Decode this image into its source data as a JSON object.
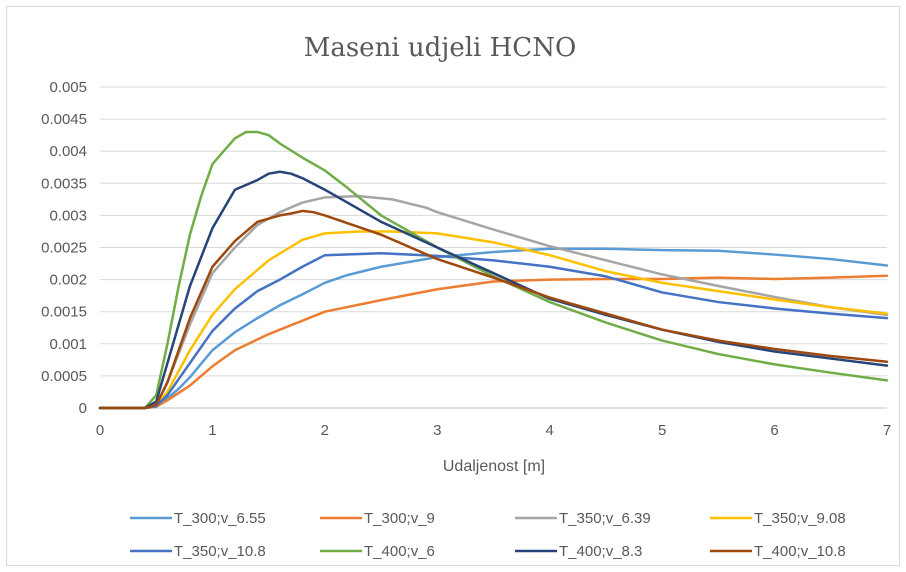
{
  "chart_data": {
    "type": "line",
    "title": "Maseni udjeli HCNO",
    "xlabel": "Udaljenost [m]",
    "ylabel": "",
    "xlim": [
      0,
      7
    ],
    "ylim": [
      0,
      0.005
    ],
    "x_ticks": [
      "0",
      "1",
      "2",
      "3",
      "4",
      "5",
      "6",
      "7"
    ],
    "y_ticks": [
      "0",
      "0.0005",
      "0.001",
      "0.0015",
      "0.002",
      "0.0025",
      "0.003",
      "0.0035",
      "0.004",
      "0.0045",
      "0.005"
    ],
    "grid": "horizontal",
    "legend_position": "bottom",
    "series": [
      {
        "name": "T_300;v_6.55",
        "color": "#5b9bd5",
        "x": [
          0,
          0.4,
          0.5,
          0.6,
          0.7,
          0.8,
          1.0,
          1.2,
          1.4,
          1.6,
          1.8,
          2.0,
          2.2,
          2.5,
          3.0,
          3.5,
          4.0,
          4.5,
          5.0,
          5.5,
          6.0,
          6.5,
          7.0
        ],
        "y": [
          0,
          0,
          2e-05,
          0.00015,
          0.0003,
          0.00048,
          0.0009,
          0.00118,
          0.0014,
          0.0016,
          0.00177,
          0.00195,
          0.00207,
          0.0022,
          0.00235,
          0.00243,
          0.00248,
          0.00248,
          0.00246,
          0.00245,
          0.00239,
          0.00232,
          0.00222
        ]
      },
      {
        "name": "T_300;v_9",
        "color": "#ed7d31",
        "x": [
          0,
          0.4,
          0.5,
          0.6,
          0.8,
          1.0,
          1.2,
          1.5,
          2.0,
          2.5,
          3.0,
          3.5,
          4.0,
          4.5,
          5.0,
          5.5,
          6.0,
          6.5,
          7.0
        ],
        "y": [
          0,
          0,
          2e-05,
          0.00012,
          0.00035,
          0.00065,
          0.0009,
          0.00115,
          0.0015,
          0.00168,
          0.00185,
          0.00197,
          0.002,
          0.00201,
          0.00201,
          0.00203,
          0.00201,
          0.00203,
          0.00206
        ]
      },
      {
        "name": "T_350;v_6.39",
        "color": "#a5a5a5",
        "x": [
          0,
          0.4,
          0.5,
          0.6,
          0.8,
          1.0,
          1.2,
          1.4,
          1.6,
          1.8,
          2.0,
          2.3,
          2.6,
          2.9,
          3.0,
          3.5,
          4.0,
          4.5,
          5.0,
          5.5,
          6.0,
          6.5,
          7.0
        ],
        "y": [
          0,
          0,
          5e-05,
          0.0004,
          0.0013,
          0.0021,
          0.0025,
          0.00285,
          0.00305,
          0.0032,
          0.00328,
          0.0033,
          0.00325,
          0.00312,
          0.00305,
          0.00278,
          0.00252,
          0.0023,
          0.00208,
          0.0019,
          0.00173,
          0.00157,
          0.00145
        ]
      },
      {
        "name": "T_350;v_9.08",
        "color": "#ffc000",
        "x": [
          0,
          0.4,
          0.5,
          0.6,
          0.8,
          1.0,
          1.2,
          1.5,
          1.8,
          2.0,
          2.3,
          2.6,
          3.0,
          3.5,
          4.0,
          4.5,
          5.0,
          5.5,
          6.0,
          6.5,
          7.0
        ],
        "y": [
          0,
          0,
          4e-05,
          0.00025,
          0.0009,
          0.00145,
          0.00185,
          0.0023,
          0.00262,
          0.00272,
          0.00275,
          0.00275,
          0.00272,
          0.00258,
          0.00238,
          0.00213,
          0.00195,
          0.00182,
          0.00169,
          0.00157,
          0.00147
        ]
      },
      {
        "name": "T_350;v_10.8",
        "color": "#4472c4",
        "x": [
          0,
          0.4,
          0.5,
          0.6,
          0.8,
          1.0,
          1.2,
          1.4,
          1.6,
          1.8,
          2.0,
          2.5,
          3.0,
          3.5,
          4.0,
          4.5,
          5.0,
          5.5,
          6.0,
          6.5,
          7.0
        ],
        "y": [
          0,
          0,
          3e-05,
          0.0002,
          0.0007,
          0.0012,
          0.00155,
          0.00182,
          0.002,
          0.0022,
          0.00238,
          0.00241,
          0.00237,
          0.0023,
          0.0022,
          0.00205,
          0.0018,
          0.00165,
          0.00155,
          0.00147,
          0.0014
        ]
      },
      {
        "name": "T_400;v_6",
        "color": "#70ad47",
        "x": [
          0,
          0.4,
          0.5,
          0.6,
          0.7,
          0.8,
          0.9,
          1.0,
          1.1,
          1.2,
          1.3,
          1.4,
          1.5,
          1.6,
          1.8,
          2.0,
          2.2,
          2.5,
          3.0,
          3.5,
          4.0,
          4.5,
          5.0,
          5.5,
          6.0,
          6.5,
          7.0
        ],
        "y": [
          0,
          0,
          0.0002,
          0.001,
          0.0019,
          0.0027,
          0.0033,
          0.0038,
          0.004,
          0.0042,
          0.0043,
          0.0043,
          0.00425,
          0.00412,
          0.0039,
          0.0037,
          0.00343,
          0.003,
          0.0025,
          0.00205,
          0.00165,
          0.00133,
          0.00105,
          0.00084,
          0.00068,
          0.00055,
          0.00043
        ]
      },
      {
        "name": "T_400;v_8.3",
        "color": "#264478",
        "x": [
          0,
          0.4,
          0.5,
          0.6,
          0.8,
          1.0,
          1.2,
          1.4,
          1.5,
          1.6,
          1.7,
          1.8,
          2.0,
          2.5,
          3.0,
          3.5,
          4.0,
          4.5,
          5.0,
          5.5,
          6.0,
          6.5,
          7.0
        ],
        "y": [
          0,
          0,
          0.0001,
          0.0007,
          0.0019,
          0.0028,
          0.0034,
          0.00355,
          0.00365,
          0.00368,
          0.00365,
          0.00358,
          0.0034,
          0.0029,
          0.0025,
          0.0021,
          0.0017,
          0.00145,
          0.00122,
          0.00103,
          0.00088,
          0.00077,
          0.00066
        ]
      },
      {
        "name": "T_400;v_10.8",
        "color": "#9e480e",
        "x": [
          0,
          0.4,
          0.5,
          0.6,
          0.8,
          1.0,
          1.2,
          1.4,
          1.6,
          1.7,
          1.8,
          1.9,
          2.0,
          2.5,
          3.0,
          3.5,
          4.0,
          4.5,
          5.0,
          5.5,
          6.0,
          6.5,
          7.0
        ],
        "y": [
          0,
          0,
          5e-05,
          0.0004,
          0.0014,
          0.0022,
          0.0026,
          0.0029,
          0.003,
          0.00303,
          0.00307,
          0.00305,
          0.003,
          0.0027,
          0.00232,
          0.00203,
          0.00172,
          0.00147,
          0.00122,
          0.00105,
          0.00092,
          0.00081,
          0.00072
        ]
      }
    ]
  }
}
